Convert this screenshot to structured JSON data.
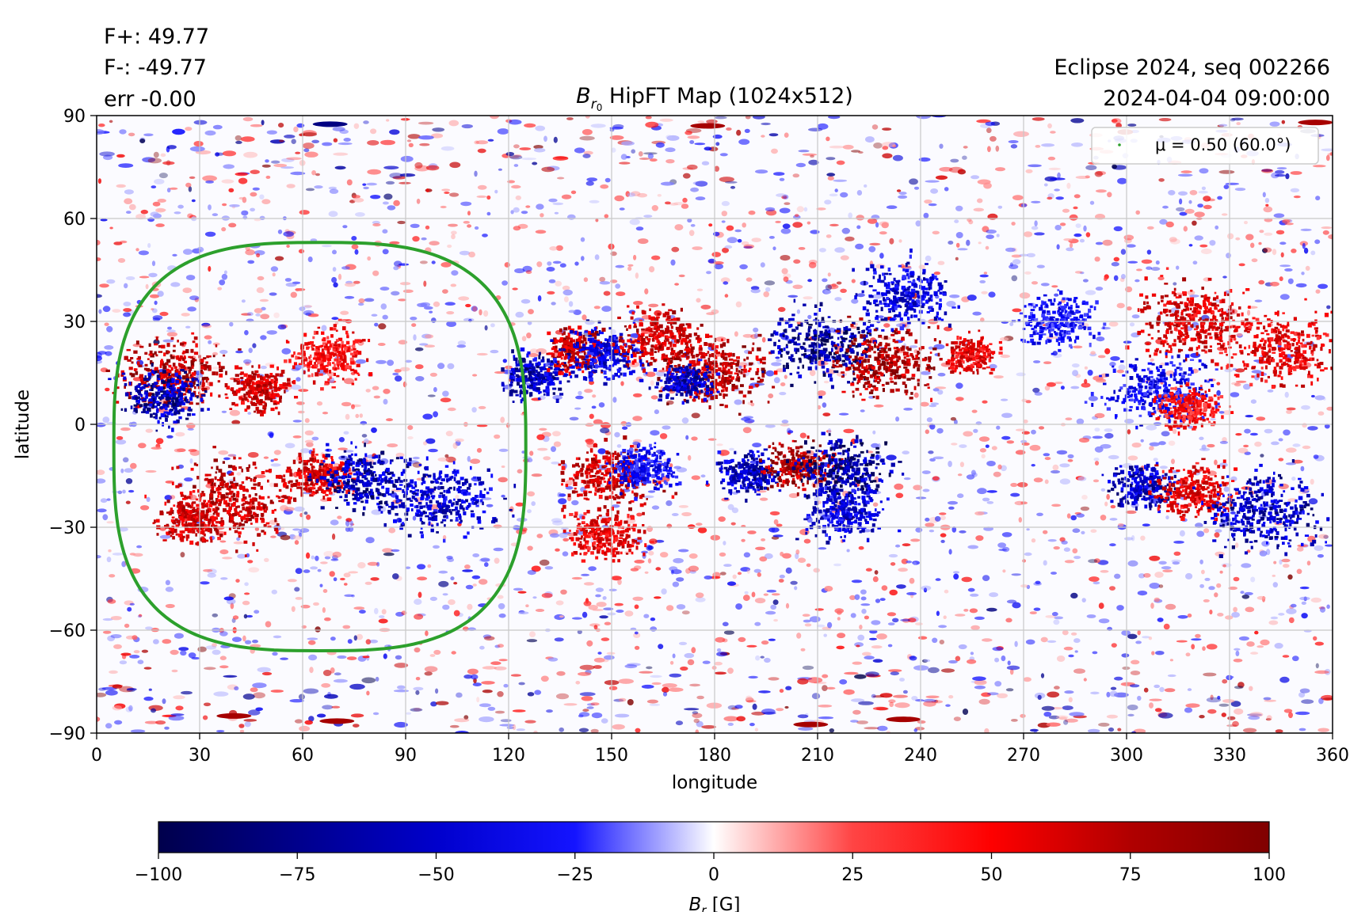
{
  "header": {
    "f_plus": "F+: 49.77",
    "f_minus": "F-: -49.77",
    "err": "err -0.00",
    "eclipse": "Eclipse 2024, seq 002266",
    "timestamp": "2024-04-04 09:00:00"
  },
  "chart_data": {
    "type": "heatmap",
    "title_prefix": "B",
    "title_sub": "r",
    "title_subsub": "0",
    "title_suffix": " HipFT Map (1024x512)",
    "xlabel": "longitude",
    "ylabel": "latitude",
    "xlim": [
      0,
      360
    ],
    "ylim": [
      -90,
      90
    ],
    "xticks": [
      0,
      30,
      60,
      90,
      120,
      150,
      180,
      210,
      240,
      270,
      300,
      330,
      360
    ],
    "yticks": [
      90,
      60,
      30,
      0,
      -30,
      -60,
      -90
    ],
    "grid": true,
    "colormap": "seismic",
    "legend": {
      "label": "μ = 0.50 (60.0°)",
      "placement": "top-right",
      "color": "#2ca02c"
    },
    "contour": {
      "center_lon": 65,
      "center_lat": -7,
      "lon_radius": 60,
      "lat_top": 53,
      "lat_bottom": -66,
      "color": "#2ca02c"
    },
    "active_regions": [
      {
        "lon": 22,
        "lat": 15,
        "sign": 1,
        "strength": 0.9,
        "spread": 8
      },
      {
        "lon": 20,
        "lat": 8,
        "sign": -1,
        "strength": 0.85,
        "spread": 6
      },
      {
        "lon": 48,
        "lat": 10,
        "sign": 1,
        "strength": 0.8,
        "spread": 5
      },
      {
        "lon": 40,
        "lat": -22,
        "sign": 1,
        "strength": 0.85,
        "spread": 9
      },
      {
        "lon": 28,
        "lat": -28,
        "sign": 1,
        "strength": 0.8,
        "spread": 5
      },
      {
        "lon": 65,
        "lat": -15,
        "sign": 1,
        "strength": 0.75,
        "spread": 5
      },
      {
        "lon": 78,
        "lat": -16,
        "sign": -1,
        "strength": 0.85,
        "spread": 7
      },
      {
        "lon": 100,
        "lat": -22,
        "sign": -1,
        "strength": 0.75,
        "spread": 8
      },
      {
        "lon": 68,
        "lat": 20,
        "sign": 1,
        "strength": 0.6,
        "spread": 6
      },
      {
        "lon": 128,
        "lat": 14,
        "sign": -1,
        "strength": 0.8,
        "spread": 5
      },
      {
        "lon": 140,
        "lat": 22,
        "sign": 1,
        "strength": 0.85,
        "spread": 5
      },
      {
        "lon": 148,
        "lat": 20,
        "sign": -1,
        "strength": 0.7,
        "spread": 6
      },
      {
        "lon": 165,
        "lat": 25,
        "sign": 1,
        "strength": 0.8,
        "spread": 7
      },
      {
        "lon": 180,
        "lat": 16,
        "sign": 1,
        "strength": 0.9,
        "spread": 8
      },
      {
        "lon": 172,
        "lat": 12,
        "sign": -1,
        "strength": 0.8,
        "spread": 4
      },
      {
        "lon": 212,
        "lat": 23,
        "sign": -1,
        "strength": 0.95,
        "spread": 8
      },
      {
        "lon": 230,
        "lat": 18,
        "sign": 1,
        "strength": 0.95,
        "spread": 8
      },
      {
        "lon": 236,
        "lat": 38,
        "sign": -1,
        "strength": 0.7,
        "spread": 7
      },
      {
        "lon": 255,
        "lat": 20,
        "sign": 1,
        "strength": 0.7,
        "spread": 4
      },
      {
        "lon": 150,
        "lat": -15,
        "sign": 1,
        "strength": 0.8,
        "spread": 7
      },
      {
        "lon": 148,
        "lat": -32,
        "sign": 1,
        "strength": 0.7,
        "spread": 6
      },
      {
        "lon": 160,
        "lat": -13,
        "sign": -1,
        "strength": 0.6,
        "spread": 5
      },
      {
        "lon": 190,
        "lat": -14,
        "sign": -1,
        "strength": 0.8,
        "spread": 5
      },
      {
        "lon": 204,
        "lat": -12,
        "sign": 1,
        "strength": 0.95,
        "spread": 5
      },
      {
        "lon": 218,
        "lat": -13,
        "sign": -1,
        "strength": 0.95,
        "spread": 7
      },
      {
        "lon": 218,
        "lat": -25,
        "sign": -1,
        "strength": 0.7,
        "spread": 6
      },
      {
        "lon": 305,
        "lat": -18,
        "sign": -1,
        "strength": 0.8,
        "spread": 5
      },
      {
        "lon": 320,
        "lat": -20,
        "sign": 1,
        "strength": 0.7,
        "spread": 6
      },
      {
        "lon": 340,
        "lat": -25,
        "sign": -1,
        "strength": 0.8,
        "spread": 9
      },
      {
        "lon": 320,
        "lat": 30,
        "sign": 1,
        "strength": 0.75,
        "spread": 9
      },
      {
        "lon": 345,
        "lat": 22,
        "sign": 1,
        "strength": 0.7,
        "spread": 8
      },
      {
        "lon": 310,
        "lat": 10,
        "sign": -1,
        "strength": 0.6,
        "spread": 8
      },
      {
        "lon": 318,
        "lat": 5,
        "sign": 1,
        "strength": 0.6,
        "spread": 5
      },
      {
        "lon": 280,
        "lat": 30,
        "sign": -1,
        "strength": 0.55,
        "spread": 6
      }
    ],
    "colorbar": {
      "label_prefix": "B",
      "label_sub": "r",
      "label_suffix": " [G]",
      "vmin": -100,
      "vmax": 100,
      "ticks": [
        "−100",
        "−75",
        "−50",
        "−25",
        "0",
        "25",
        "50",
        "75",
        "100"
      ]
    }
  }
}
